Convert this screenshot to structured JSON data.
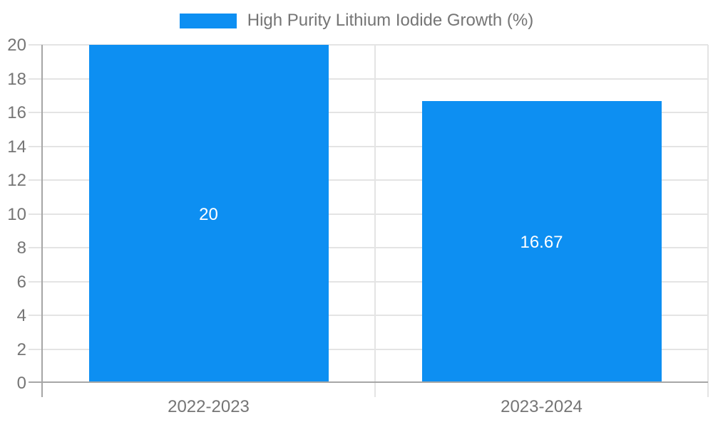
{
  "chart_data": {
    "type": "bar",
    "title": "High Purity Lithium Iodide Growth (%)",
    "categories": [
      "2022-2023",
      "2023-2024"
    ],
    "series": [
      {
        "name": "High Purity Lithium Iodide Growth (%)",
        "values": [
          20,
          16.67
        ]
      }
    ],
    "bar_labels": [
      "20",
      "16.67"
    ],
    "xlabel": "",
    "ylabel": "",
    "ylim": [
      0,
      20
    ],
    "yticks": [
      0,
      2,
      4,
      6,
      8,
      10,
      12,
      14,
      16,
      18,
      20
    ],
    "grid": true,
    "legend_position": "top-center",
    "colors": {
      "bar": "#0d8ff2",
      "grid_line": "#e4e4e4",
      "axis_line": "#a6a6a6",
      "tick_label": "#757575",
      "legend_label": "#757575",
      "bar_label": "#ffffff",
      "background": "#ffffff"
    }
  }
}
